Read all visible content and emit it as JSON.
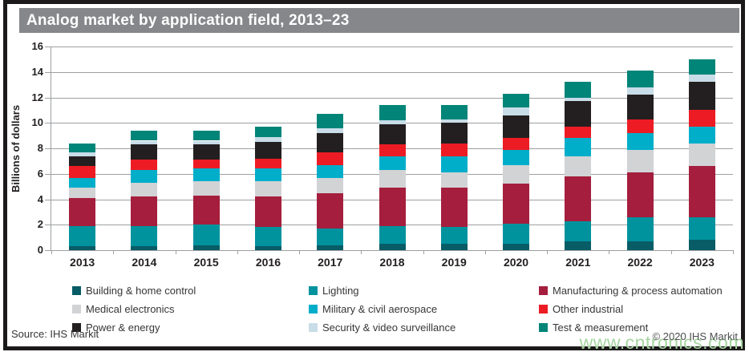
{
  "title": "Analog market by application field, 2013–23",
  "source": "Source: IHS Markit",
  "copyright": "© 2020 IHS Markit",
  "watermark": "www.cntronics.com",
  "palette": {
    "title_bar": "#85878a",
    "frame_border": "#1b191a",
    "gridline": "#9d9fa1",
    "watermark_green": "#a7d5a1"
  },
  "chart_data": {
    "type": "bar",
    "stacked": true,
    "title": "Analog market by application field, 2013–23",
    "xlabel": "",
    "ylabel": "Billions of dollars",
    "ylim": [
      0,
      16
    ],
    "yticks": [
      0,
      2,
      4,
      6,
      8,
      10,
      12,
      14,
      16
    ],
    "grid": true,
    "legend_position": "bottom",
    "categories": [
      "2013",
      "2014",
      "2015",
      "2016",
      "2017",
      "2018",
      "2019",
      "2020",
      "2021",
      "2022",
      "2023"
    ],
    "series": [
      {
        "name": "Building & home control",
        "color": "#085c66",
        "values": [
          0.3,
          0.3,
          0.4,
          0.3,
          0.4,
          0.5,
          0.5,
          0.5,
          0.7,
          0.7,
          0.8
        ]
      },
      {
        "name": "Lighting",
        "color": "#00939e",
        "values": [
          1.6,
          1.6,
          1.6,
          1.5,
          1.3,
          1.4,
          1.3,
          1.6,
          1.6,
          1.9,
          1.8
        ]
      },
      {
        "name": "Manufacturing & process automation",
        "color": "#a51e3d",
        "values": [
          2.2,
          2.3,
          2.3,
          2.4,
          2.8,
          3.0,
          3.1,
          3.1,
          3.5,
          3.5,
          4.0
        ]
      },
      {
        "name": "Medical electronics",
        "color": "#d2d3d5",
        "values": [
          0.8,
          1.1,
          1.1,
          1.2,
          1.2,
          1.4,
          1.2,
          1.5,
          1.6,
          1.8,
          1.8
        ]
      },
      {
        "name": "Military & civil aerospace",
        "color": "#00aeca",
        "values": [
          0.8,
          1.0,
          1.0,
          1.0,
          1.0,
          1.1,
          1.3,
          1.2,
          1.4,
          1.3,
          1.3
        ]
      },
      {
        "name": "Other industrial",
        "color": "#ed1c24",
        "values": [
          0.9,
          0.8,
          0.7,
          0.8,
          1.0,
          0.9,
          1.0,
          0.9,
          0.9,
          1.1,
          1.3
        ]
      },
      {
        "name": "Power & energy",
        "color": "#231f20",
        "values": [
          0.8,
          1.2,
          1.2,
          1.3,
          1.5,
          1.6,
          1.6,
          1.8,
          2.0,
          1.9,
          2.2
        ]
      },
      {
        "name": "Security & video surveillance",
        "color": "#c9dde8",
        "values": [
          0.3,
          0.3,
          0.3,
          0.4,
          0.4,
          0.3,
          0.3,
          0.6,
          0.3,
          0.6,
          0.6
        ]
      },
      {
        "name": "Test & measurement",
        "color": "#008578",
        "values": [
          0.7,
          0.8,
          0.8,
          0.8,
          1.1,
          1.2,
          1.1,
          1.1,
          1.2,
          1.3,
          1.2
        ]
      }
    ],
    "totals": [
      8.4,
      9.4,
      9.4,
      9.7,
      10.7,
      11.4,
      11.4,
      12.3,
      13.2,
      14.1,
      15.0
    ]
  }
}
